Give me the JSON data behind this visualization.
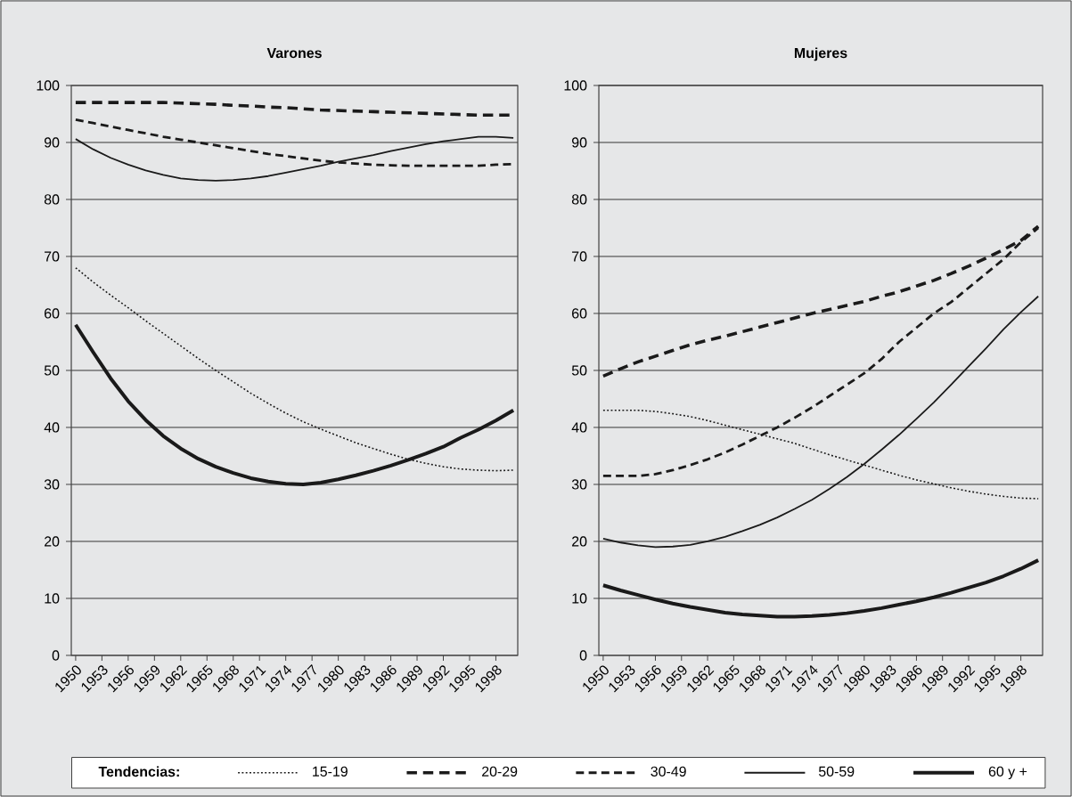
{
  "chart_data": [
    {
      "type": "line",
      "title": "Varones",
      "legend": "bottom",
      "legend_title": "Tendencias:",
      "grid": "y",
      "x": [
        1950,
        1952,
        1954,
        1956,
        1958,
        1960,
        1962,
        1964,
        1966,
        1968,
        1970,
        1972,
        1974,
        1976,
        1978,
        1980,
        1982,
        1984,
        1986,
        1988,
        1990,
        1992,
        1994,
        1996,
        1998,
        2000
      ],
      "xlim": [
        1949.5,
        2000.5
      ],
      "xticks": [
        1950,
        1953,
        1956,
        1959,
        1962,
        1965,
        1968,
        1971,
        1974,
        1977,
        1980,
        1983,
        1986,
        1989,
        1992,
        1995,
        1998
      ],
      "ylim": [
        0,
        100
      ],
      "yticks": [
        0,
        10,
        20,
        30,
        40,
        50,
        60,
        70,
        80,
        90,
        100
      ],
      "series": [
        {
          "name": "15-19",
          "color": "#1a1a1a",
          "line_style": "dotted",
          "values": [
            68,
            65.5,
            63.2,
            61,
            58.7,
            56.5,
            54.3,
            52.1,
            50,
            48,
            46,
            44.2,
            42.5,
            41,
            39.7,
            38.5,
            37.3,
            36.3,
            35.3,
            34.4,
            33.7,
            33.1,
            32.7,
            32.5,
            32.4,
            32.5
          ]
        },
        {
          "name": "20-29",
          "color": "#1a1a1a",
          "line_style": "dashed",
          "values": [
            97,
            97,
            97,
            97,
            97,
            97,
            96.9,
            96.8,
            96.7,
            96.5,
            96.4,
            96.2,
            96.1,
            95.9,
            95.7,
            95.6,
            95.5,
            95.4,
            95.3,
            95.2,
            95.1,
            95,
            94.9,
            94.8,
            94.8,
            94.8
          ]
        },
        {
          "name": "30-49",
          "color": "#1a1a1a",
          "line_style": "dashed",
          "values": [
            94,
            93.4,
            92.8,
            92.2,
            91.6,
            91,
            90.5,
            90,
            89.5,
            89,
            88.5,
            88,
            87.6,
            87.2,
            86.8,
            86.5,
            86.3,
            86.1,
            86,
            85.9,
            85.9,
            85.9,
            85.9,
            85.9,
            86.1,
            86.2
          ]
        },
        {
          "name": "50-59",
          "color": "#1a1a1a",
          "line_style": "solid",
          "values": [
            90.6,
            88.8,
            87.3,
            86.1,
            85.1,
            84.3,
            83.7,
            83.4,
            83.3,
            83.4,
            83.7,
            84.1,
            84.7,
            85.3,
            85.9,
            86.6,
            87.2,
            87.8,
            88.5,
            89.1,
            89.7,
            90.2,
            90.6,
            91,
            91,
            90.8
          ]
        },
        {
          "name": "60 y +",
          "color": "#1a1a1a",
          "line_style": "solid",
          "values": [
            58,
            53.2,
            48.6,
            44.6,
            41.3,
            38.5,
            36.3,
            34.5,
            33.1,
            32,
            31.1,
            30.5,
            30.1,
            30,
            30.3,
            30.9,
            31.6,
            32.4,
            33.3,
            34.3,
            35.4,
            36.6,
            38.2,
            39.6,
            41.2,
            43
          ]
        }
      ]
    },
    {
      "type": "line",
      "title": "Mujeres",
      "grid": "y",
      "x": [
        1950,
        1952,
        1954,
        1956,
        1958,
        1960,
        1962,
        1964,
        1966,
        1968,
        1970,
        1972,
        1974,
        1976,
        1978,
        1980,
        1982,
        1984,
        1986,
        1988,
        1990,
        1992,
        1994,
        1996,
        1998,
        2000
      ],
      "xlim": [
        1949.5,
        2000.5
      ],
      "xticks": [
        1950,
        1953,
        1956,
        1959,
        1962,
        1965,
        1968,
        1971,
        1974,
        1977,
        1980,
        1983,
        1986,
        1989,
        1992,
        1995,
        1998
      ],
      "ylim": [
        0,
        100
      ],
      "yticks": [
        0,
        10,
        20,
        30,
        40,
        50,
        60,
        70,
        80,
        90,
        100
      ],
      "series": [
        {
          "color": "#1a1a1a",
          "line_style": "dotted",
          "values": [
            43,
            43,
            43,
            42.8,
            42.4,
            41.9,
            41.2,
            40.4,
            39.6,
            38.8,
            38,
            37.2,
            36.2,
            35.2,
            34.3,
            33.4,
            32.5,
            31.6,
            30.8,
            30.1,
            29.4,
            28.8,
            28.3,
            27.9,
            27.6,
            27.5
          ]
        },
        {
          "color": "#1a1a1a",
          "line_style": "dashed",
          "values": [
            49,
            50.3,
            51.5,
            52.5,
            53.5,
            54.5,
            55.3,
            56,
            56.8,
            57.6,
            58.4,
            59.2,
            60,
            60.7,
            61.4,
            62.1,
            63,
            63.8,
            64.8,
            65.8,
            67,
            68.3,
            69.7,
            71.2,
            72.8,
            75.3
          ]
        },
        {
          "color": "#1a1a1a",
          "line_style": "dashed",
          "values": [
            31.5,
            31.5,
            31.5,
            31.8,
            32.5,
            33.4,
            34.4,
            35.6,
            37,
            38.5,
            40,
            41.7,
            43.5,
            45.5,
            47.5,
            49.5,
            52,
            55,
            57.5,
            60,
            62,
            64.5,
            67,
            69.5,
            72.5,
            75
          ]
        },
        {
          "color": "#1a1a1a",
          "line_style": "solid",
          "values": [
            20.5,
            19.8,
            19.3,
            19,
            19.1,
            19.4,
            20,
            20.8,
            21.8,
            22.9,
            24.2,
            25.7,
            27.3,
            29.2,
            31.3,
            33.6,
            36.1,
            38.7,
            41.5,
            44.4,
            47.5,
            50.7,
            53.9,
            57.2,
            60.2,
            63
          ]
        },
        {
          "color": "#1a1a1a",
          "line_style": "solid",
          "values": [
            12.3,
            11.4,
            10.6,
            9.8,
            9.1,
            8.5,
            8,
            7.5,
            7.2,
            7,
            6.8,
            6.8,
            6.9,
            7.1,
            7.4,
            7.8,
            8.3,
            8.9,
            9.5,
            10.2,
            11,
            11.9,
            12.8,
            13.9,
            15.2,
            16.7
          ]
        }
      ]
    }
  ]
}
